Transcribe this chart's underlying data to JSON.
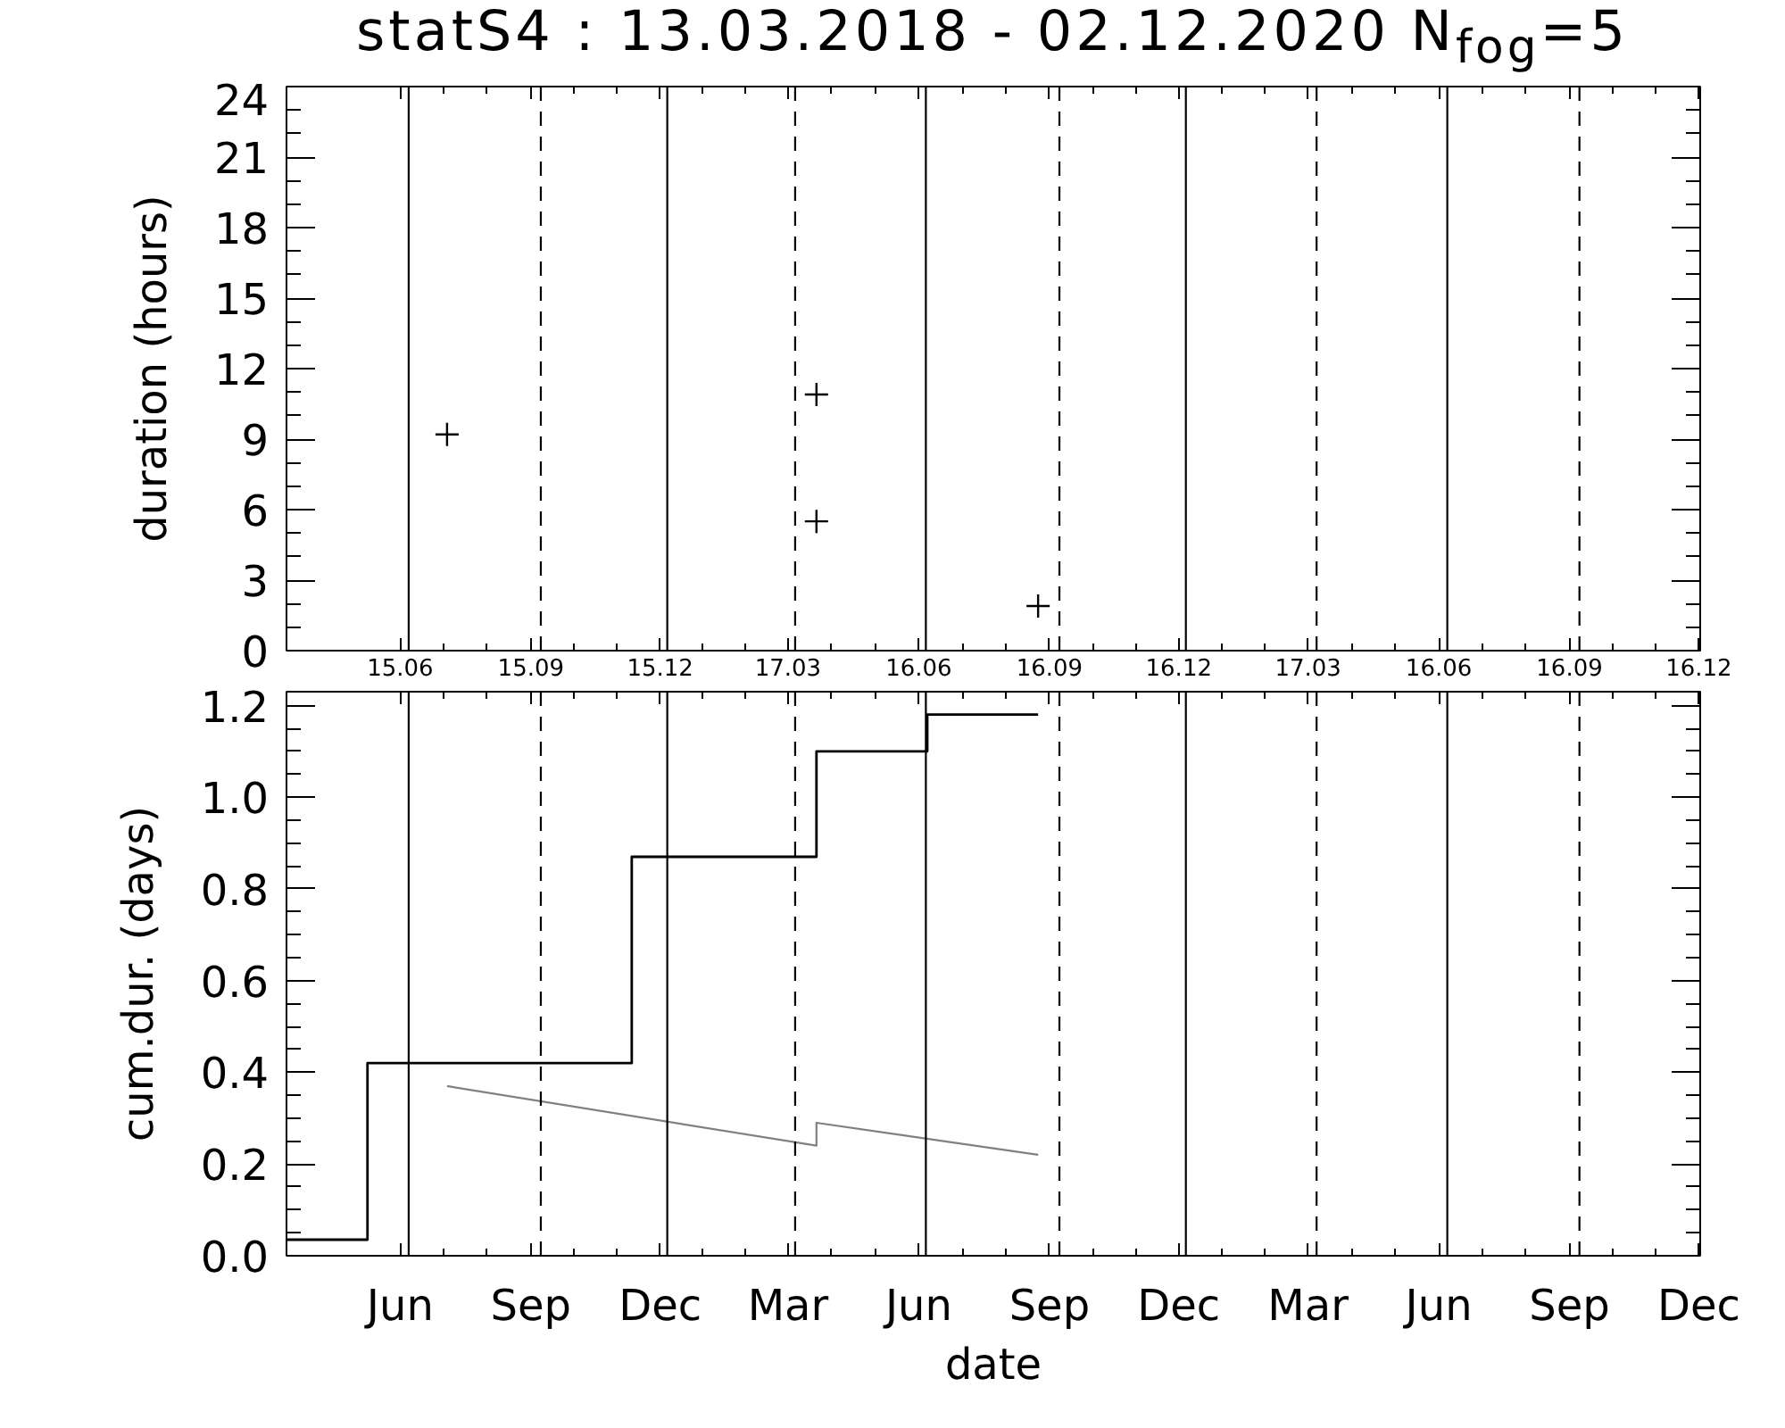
{
  "chart_data": [
    {
      "type": "scatter",
      "title": "statS4 : 13.03.2018 - 02.12.2020 N$_{fog}$=5",
      "ylabel": "duration (hours)",
      "x": [
        "2018-07-04",
        "2019-03-21",
        "2019-03-21",
        "2019-08-24"
      ],
      "series": [
        {
          "color": "#000000",
          "values": [
            9.2,
            10.9,
            5.5,
            1.9
          ]
        }
      ],
      "marker": "cross",
      "xlim": [
        "2018-03-13",
        "2020-12-02"
      ],
      "ylim": [
        0,
        24
      ],
      "xticks": [
        {
          "value": "2018-06-01",
          "label": "15.06"
        },
        {
          "value": "2018-09-01",
          "label": "15.09"
        },
        {
          "value": "2018-12-01",
          "label": "15.12"
        },
        {
          "value": "2019-03-01",
          "label": "17.03"
        },
        {
          "value": "2019-06-01",
          "label": "16.06"
        },
        {
          "value": "2019-09-01",
          "label": "16.09"
        },
        {
          "value": "2019-12-01",
          "label": "16.12"
        },
        {
          "value": "2020-03-01",
          "label": "17.03"
        },
        {
          "value": "2020-06-01",
          "label": "16.06"
        },
        {
          "value": "2020-09-01",
          "label": "16.09"
        },
        {
          "value": "2020-12-01",
          "label": "16.12"
        }
      ],
      "yticks": [
        0,
        3,
        6,
        9,
        12,
        15,
        18,
        21,
        24
      ],
      "ref_lines": [
        {
          "axis": "x",
          "value": "2018-06-07",
          "color": "#000000",
          "line_style": "solid"
        },
        {
          "axis": "x",
          "value": "2018-09-08",
          "color": "#000000",
          "line_style": "dashed"
        },
        {
          "axis": "x",
          "value": "2018-12-06",
          "color": "#000000",
          "line_style": "solid"
        },
        {
          "axis": "x",
          "value": "2019-03-06",
          "color": "#000000",
          "line_style": "dashed"
        },
        {
          "axis": "x",
          "value": "2019-06-06",
          "color": "#000000",
          "line_style": "solid"
        },
        {
          "axis": "x",
          "value": "2019-09-08",
          "color": "#000000",
          "line_style": "dashed"
        },
        {
          "axis": "x",
          "value": "2019-12-06",
          "color": "#000000",
          "line_style": "solid"
        },
        {
          "axis": "x",
          "value": "2020-03-07",
          "color": "#000000",
          "line_style": "dashed"
        },
        {
          "axis": "x",
          "value": "2020-06-07",
          "color": "#000000",
          "line_style": "solid"
        },
        {
          "axis": "x",
          "value": "2020-09-08",
          "color": "#000000",
          "line_style": "dashed"
        }
      ]
    },
    {
      "type": "step",
      "xlabel": "date",
      "ylabel": "cum.dur. (days)",
      "series": [
        {
          "type": "step",
          "color": "#000000",
          "x": [
            "2018-03-13",
            "2018-05-09",
            "2018-11-11",
            "2019-03-21",
            "2019-06-07",
            "2019-08-24"
          ],
          "values": [
            0.035,
            0.42,
            0.87,
            1.1,
            1.18,
            1.18
          ]
        },
        {
          "type": "line",
          "color": "#808080",
          "x": [
            "2018-07-04",
            "2019-03-21",
            "2019-03-21",
            "2019-08-24"
          ],
          "values": [
            0.37,
            0.24,
            0.29,
            0.22
          ]
        }
      ],
      "xlim": [
        "2018-03-13",
        "2020-12-02"
      ],
      "ylim": [
        0,
        1.23
      ],
      "xticks": [
        {
          "value": "2018-06-01",
          "label": "Jun"
        },
        {
          "value": "2018-09-01",
          "label": "Sep"
        },
        {
          "value": "2018-12-01",
          "label": "Dec"
        },
        {
          "value": "2019-03-01",
          "label": "Mar"
        },
        {
          "value": "2019-06-01",
          "label": "Jun"
        },
        {
          "value": "2019-09-01",
          "label": "Sep"
        },
        {
          "value": "2019-12-01",
          "label": "Dec"
        },
        {
          "value": "2020-03-01",
          "label": "Mar"
        },
        {
          "value": "2020-06-01",
          "label": "Jun"
        },
        {
          "value": "2020-09-01",
          "label": "Sep"
        },
        {
          "value": "2020-12-01",
          "label": "Dec"
        }
      ],
      "yticks": [
        {
          "value": 0,
          "label": "0.0"
        },
        0.2,
        0.4,
        0.6,
        0.8,
        {
          "value": 1,
          "label": "1.0"
        },
        1.2
      ],
      "ref_lines": [
        {
          "axis": "x",
          "value": "2018-06-07",
          "color": "#000000",
          "line_style": "solid"
        },
        {
          "axis": "x",
          "value": "2018-09-08",
          "color": "#000000",
          "line_style": "dashed"
        },
        {
          "axis": "x",
          "value": "2018-12-06",
          "color": "#000000",
          "line_style": "solid"
        },
        {
          "axis": "x",
          "value": "2019-03-06",
          "color": "#000000",
          "line_style": "dashed"
        },
        {
          "axis": "x",
          "value": "2019-06-06",
          "color": "#000000",
          "line_style": "solid"
        },
        {
          "axis": "x",
          "value": "2019-09-08",
          "color": "#000000",
          "line_style": "dashed"
        },
        {
          "axis": "x",
          "value": "2019-12-06",
          "color": "#000000",
          "line_style": "solid"
        },
        {
          "axis": "x",
          "value": "2020-03-07",
          "color": "#000000",
          "line_style": "dashed"
        },
        {
          "axis": "x",
          "value": "2020-06-07",
          "color": "#000000",
          "line_style": "solid"
        },
        {
          "axis": "x",
          "value": "2020-09-08",
          "color": "#000000",
          "line_style": "dashed"
        }
      ]
    }
  ]
}
